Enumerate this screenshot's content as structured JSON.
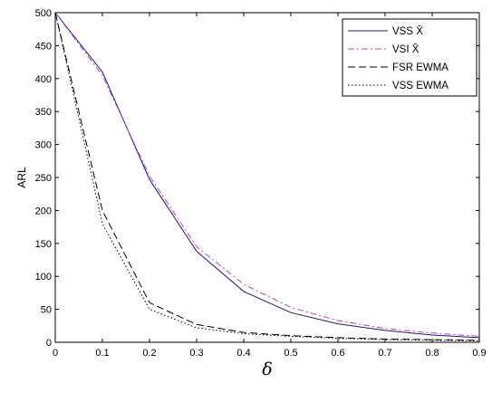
{
  "chart_data": {
    "type": "line",
    "title": "",
    "xlabel": "δ",
    "ylabel": "ARL",
    "xlim": [
      0,
      0.9
    ],
    "ylim": [
      0,
      500
    ],
    "xticks": [
      0,
      0.1,
      0.2,
      0.3,
      0.4,
      0.5,
      0.6,
      0.7,
      0.8,
      0.9
    ],
    "xtick_labels": [
      "0",
      "0.1",
      "0.2",
      "0.3",
      "0.4",
      "0.5",
      "0.6",
      "0.7",
      "0.8",
      "0.9"
    ],
    "yticks": [
      0,
      50,
      100,
      150,
      200,
      250,
      300,
      350,
      400,
      450,
      500
    ],
    "ytick_labels": [
      "0",
      "50",
      "100",
      "150",
      "200",
      "250",
      "300",
      "350",
      "400",
      "450",
      "500"
    ],
    "grid": false,
    "legend_position": "top-right",
    "series": [
      {
        "name": "VSS X̄",
        "color": "#1c1c6e",
        "dash": "solid",
        "x": [
          0,
          0.1,
          0.2,
          0.3,
          0.4,
          0.5,
          0.6,
          0.7,
          0.8,
          0.9
        ],
        "values": [
          500,
          410,
          247,
          138,
          77,
          45,
          28,
          18,
          11,
          7
        ]
      },
      {
        "name": "VSI X̄",
        "color": "#c040c0",
        "dash": "dashdot",
        "x": [
          0,
          0.1,
          0.2,
          0.3,
          0.4,
          0.5,
          0.6,
          0.7,
          0.8,
          0.9
        ],
        "values": [
          500,
          405,
          252,
          145,
          88,
          53,
          33,
          21,
          14,
          9
        ]
      },
      {
        "name": "FSR EWMA",
        "color": "#000000",
        "dash": "dashed",
        "x": [
          0,
          0.1,
          0.2,
          0.3,
          0.4,
          0.5,
          0.6,
          0.7,
          0.8,
          0.9
        ],
        "values": [
          500,
          200,
          60,
          27,
          15,
          10,
          7,
          5,
          4,
          3
        ]
      },
      {
        "name": "VSS EWMA",
        "color": "#000000",
        "dash": "dotted",
        "x": [
          0,
          0.1,
          0.2,
          0.3,
          0.4,
          0.5,
          0.6,
          0.7,
          0.8,
          0.9
        ],
        "values": [
          500,
          180,
          50,
          22,
          13,
          9,
          6,
          4,
          3,
          2
        ]
      }
    ]
  }
}
